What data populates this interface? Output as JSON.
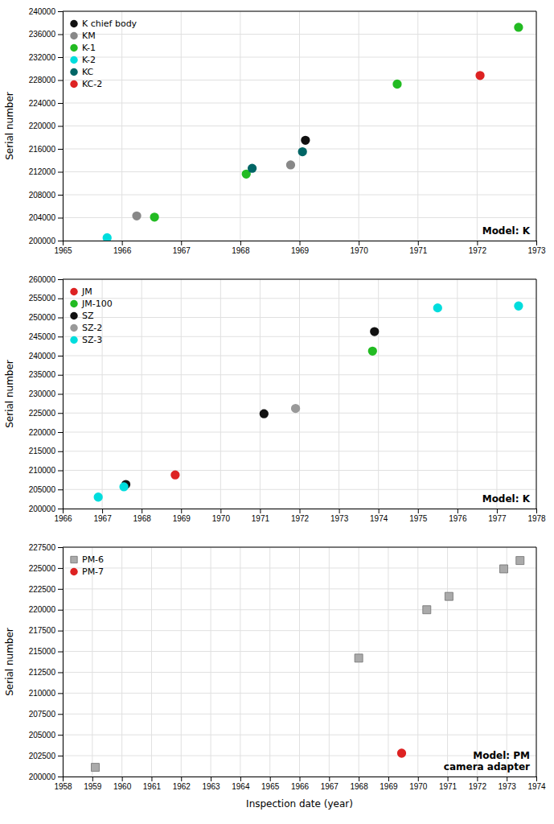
{
  "chart_data": [
    {
      "type": "scatter",
      "title": "Model: K",
      "ylabel": "Serial number",
      "xlim": [
        1965,
        1973
      ],
      "ylim": [
        200000,
        240000
      ],
      "xticks": [
        1965,
        1966,
        1967,
        1968,
        1969,
        1970,
        1971,
        1972,
        1973
      ],
      "yticks": [
        200000,
        204000,
        208000,
        212000,
        216000,
        220000,
        224000,
        228000,
        232000,
        236000,
        240000
      ],
      "grid": true,
      "legend": "upper left",
      "series": [
        {
          "name": "K chief body",
          "color": "#111111",
          "marker": "circle",
          "x": [
            1969.1
          ],
          "values": [
            217500
          ]
        },
        {
          "name": "KM",
          "color": "#888888",
          "marker": "circle",
          "x": [
            1966.25,
            1968.85
          ],
          "values": [
            204300,
            213200
          ]
        },
        {
          "name": "K-1",
          "color": "#22bb22",
          "marker": "circle",
          "x": [
            1966.55,
            1968.1,
            1970.65,
            1972.7
          ],
          "values": [
            204100,
            211600,
            227300,
            237200
          ]
        },
        {
          "name": "K-2",
          "color": "#00dddd",
          "marker": "circle",
          "x": [
            1965.75
          ],
          "values": [
            200500
          ]
        },
        {
          "name": "KC",
          "color": "#006666",
          "marker": "circle",
          "x": [
            1968.2,
            1969.05
          ],
          "values": [
            212600,
            215500
          ]
        },
        {
          "name": "KC-2",
          "color": "#dd2222",
          "marker": "circle",
          "x": [
            1972.05
          ],
          "values": [
            228800
          ]
        }
      ]
    },
    {
      "type": "scatter",
      "title": "Model: K",
      "ylabel": "Serial number",
      "xlim": [
        1966,
        1978
      ],
      "ylim": [
        200000,
        260000
      ],
      "xticks": [
        1966,
        1967,
        1968,
        1969,
        1970,
        1971,
        1972,
        1973,
        1974,
        1975,
        1976,
        1977,
        1978
      ],
      "yticks": [
        200000,
        205000,
        210000,
        215000,
        220000,
        225000,
        230000,
        235000,
        240000,
        245000,
        250000,
        255000,
        260000
      ],
      "grid": true,
      "legend": "upper left",
      "series": [
        {
          "name": "JM",
          "color": "#dd2222",
          "marker": "circle",
          "x": [
            1968.85
          ],
          "values": [
            208800
          ]
        },
        {
          "name": "JM-100",
          "color": "#22bb22",
          "marker": "circle",
          "x": [
            1973.85
          ],
          "values": [
            241200
          ]
        },
        {
          "name": "SZ",
          "color": "#111111",
          "marker": "circle",
          "x": [
            1967.6,
            1971.1,
            1973.9
          ],
          "values": [
            206300,
            224800,
            246300
          ]
        },
        {
          "name": "SZ-2",
          "color": "#999999",
          "marker": "circle",
          "x": [
            1971.9
          ],
          "values": [
            226200
          ]
        },
        {
          "name": "SZ-3",
          "color": "#00dddd",
          "marker": "circle",
          "x": [
            1966.9,
            1967.55,
            1975.5,
            1977.55
          ],
          "values": [
            203000,
            205700,
            252500,
            253000
          ]
        }
      ]
    },
    {
      "type": "scatter",
      "title": "Model: PM\ncamera adapter",
      "ylabel": "Serial number",
      "xlabel": "Inspection date (year)",
      "xlim": [
        1958,
        1974
      ],
      "ylim": [
        200000,
        227500
      ],
      "xticks": [
        1958,
        1959,
        1960,
        1961,
        1962,
        1963,
        1964,
        1965,
        1966,
        1967,
        1968,
        1969,
        1970,
        1971,
        1972,
        1973,
        1974
      ],
      "yticks": [
        200000,
        202500,
        205000,
        207500,
        210000,
        212500,
        215000,
        217500,
        220000,
        222500,
        225000,
        227500
      ],
      "grid": true,
      "legend": "upper left",
      "series": [
        {
          "name": "PM-6",
          "color": "#aaaaaa",
          "marker": "square",
          "x": [
            1959.1,
            1968.0,
            1970.3,
            1971.05,
            1972.9,
            1973.45
          ],
          "values": [
            201100,
            214200,
            220000,
            221600,
            224900,
            225900
          ]
        },
        {
          "name": "PM-7",
          "color": "#dd2222",
          "marker": "circle",
          "x": [
            1969.45
          ],
          "values": [
            202800
          ]
        }
      ]
    }
  ]
}
